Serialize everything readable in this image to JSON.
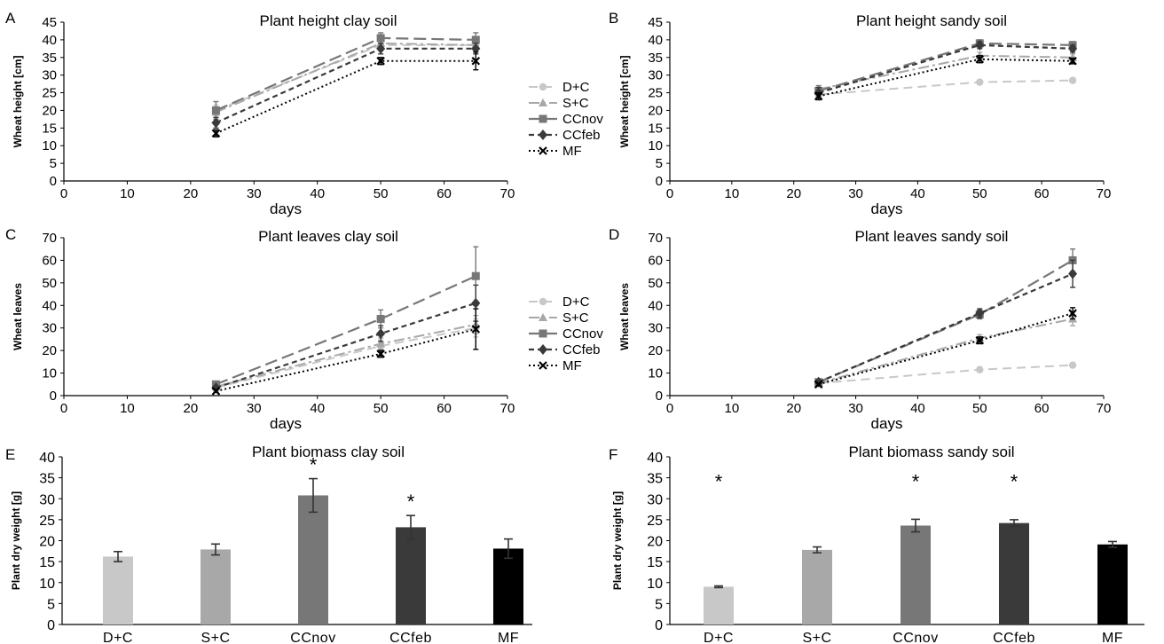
{
  "chart_data": [
    {
      "panel": "A",
      "type": "line",
      "title": "Plant height clay soil",
      "xlabel": "days",
      "ylabel": "Wheat height [cm]",
      "xlim": [
        0,
        70
      ],
      "xticks": [
        0,
        10,
        20,
        30,
        40,
        50,
        60,
        70
      ],
      "ylim": [
        0,
        45
      ],
      "yticks": [
        0,
        5,
        10,
        15,
        20,
        25,
        30,
        35,
        40,
        45
      ],
      "x": [
        24,
        50,
        65
      ],
      "series": [
        {
          "name": "D+C",
          "values": [
            20,
            38.5,
            38.5
          ],
          "err": [
            1.5,
            1.0,
            1.0
          ]
        },
        {
          "name": "S+C",
          "values": [
            19.5,
            39.0,
            38.5
          ],
          "err": [
            1.5,
            1.0,
            1.0
          ]
        },
        {
          "name": "CCnov",
          "values": [
            20,
            40.5,
            40
          ],
          "err": [
            2.5,
            1.5,
            2.0
          ]
        },
        {
          "name": "CCfeb",
          "values": [
            16.5,
            37.5,
            37.5
          ],
          "err": [
            1.5,
            1.5,
            1.5
          ]
        },
        {
          "name": "MF",
          "values": [
            13.5,
            34,
            34
          ],
          "err": [
            1.0,
            1.0,
            2.5
          ]
        }
      ]
    },
    {
      "panel": "B",
      "type": "line",
      "title": "Plant height sandy soil",
      "xlabel": "days",
      "ylabel": "Wheat height [cm]",
      "xlim": [
        0,
        70
      ],
      "xticks": [
        0,
        10,
        20,
        30,
        40,
        50,
        60,
        70
      ],
      "ylim": [
        0,
        45
      ],
      "yticks": [
        0,
        5,
        10,
        15,
        20,
        25,
        30,
        35,
        40,
        45
      ],
      "x": [
        24,
        50,
        65
      ],
      "series": [
        {
          "name": "D+C",
          "values": [
            24.5,
            28,
            28.5
          ],
          "err": [
            1.0,
            0.5,
            0.5
          ]
        },
        {
          "name": "S+C",
          "values": [
            26,
            35.5,
            35
          ],
          "err": [
            1.0,
            1.0,
            1.0
          ]
        },
        {
          "name": "CCnov",
          "values": [
            25.5,
            39,
            38.5
          ],
          "err": [
            1.5,
            1.0,
            1.0
          ]
        },
        {
          "name": "CCfeb",
          "values": [
            25,
            38.5,
            37.5
          ],
          "err": [
            1.5,
            1.0,
            1.0
          ]
        },
        {
          "name": "MF",
          "values": [
            24,
            34.5,
            34
          ],
          "err": [
            1.0,
            1.0,
            0.8
          ]
        }
      ]
    },
    {
      "panel": "C",
      "type": "line",
      "title": "Plant leaves clay soil",
      "xlabel": "days",
      "ylabel": "Wheat leaves",
      "xlim": [
        0,
        70
      ],
      "xticks": [
        0,
        10,
        20,
        30,
        40,
        50,
        60,
        70
      ],
      "ylim": [
        0,
        70
      ],
      "yticks": [
        0,
        10,
        20,
        30,
        40,
        50,
        60,
        70
      ],
      "x": [
        24,
        50,
        65
      ],
      "series": [
        {
          "name": "D+C",
          "values": [
            3.5,
            22,
            30
          ],
          "err": [
            0.5,
            2.5,
            4
          ]
        },
        {
          "name": "S+C",
          "values": [
            4,
            23,
            31.5
          ],
          "err": [
            0.5,
            2.5,
            4
          ]
        },
        {
          "name": "CCnov",
          "values": [
            5,
            34,
            53
          ],
          "err": [
            1.0,
            4,
            13
          ]
        },
        {
          "name": "CCfeb",
          "values": [
            3.5,
            27.5,
            41
          ],
          "err": [
            0.5,
            3.5,
            8
          ]
        },
        {
          "name": "MF",
          "values": [
            2,
            18.5,
            29.5
          ],
          "err": [
            0.5,
            1.5,
            9
          ]
        }
      ]
    },
    {
      "panel": "D",
      "type": "line",
      "title": "Plant leaves sandy soil",
      "xlabel": "days",
      "ylabel": "Wheat leaves",
      "xlim": [
        0,
        70
      ],
      "xticks": [
        0,
        10,
        20,
        30,
        40,
        50,
        60,
        70
      ],
      "ylim": [
        0,
        70
      ],
      "yticks": [
        0,
        10,
        20,
        30,
        40,
        50,
        60,
        70
      ],
      "x": [
        24,
        50,
        65
      ],
      "series": [
        {
          "name": "D+C",
          "values": [
            5.5,
            11.5,
            13.5
          ],
          "err": [
            0.5,
            1.0,
            1.0
          ]
        },
        {
          "name": "S+C",
          "values": [
            5.5,
            25.5,
            34
          ],
          "err": [
            0.5,
            1.5,
            3
          ]
        },
        {
          "name": "CCnov",
          "values": [
            6,
            36,
            60
          ],
          "err": [
            0.5,
            2,
            5
          ]
        },
        {
          "name": "CCfeb",
          "values": [
            6,
            36.5,
            54
          ],
          "err": [
            0.5,
            2,
            6
          ]
        },
        {
          "name": "MF",
          "values": [
            5,
            24.5,
            36.5
          ],
          "err": [
            0.5,
            1.5,
            2.5
          ]
        }
      ]
    },
    {
      "panel": "E",
      "type": "bar",
      "title": "Plant biomass clay soil",
      "ylabel": "Plant dry weight [g]",
      "ylim": [
        0,
        40
      ],
      "yticks": [
        0,
        5,
        10,
        15,
        20,
        25,
        30,
        35,
        40
      ],
      "categories": [
        "D+C",
        "S+C",
        "CCnov",
        "CCfeb",
        "MF"
      ],
      "values": [
        16.2,
        17.9,
        30.8,
        23.2,
        18.1
      ],
      "err": [
        1.2,
        1.3,
        4.0,
        2.8,
        2.3
      ],
      "significant": [
        "",
        "",
        "*",
        "*",
        ""
      ]
    },
    {
      "panel": "F",
      "type": "bar",
      "title": "Plant biomass sandy soil",
      "ylabel": "Plant dry weight [g]",
      "ylim": [
        0,
        40
      ],
      "yticks": [
        0,
        5,
        10,
        15,
        20,
        25,
        30,
        35,
        40
      ],
      "categories": [
        "D+C",
        "S+C",
        "CCnov",
        "CCfeb",
        "MF"
      ],
      "values": [
        9.0,
        17.8,
        23.6,
        24.2,
        19.1
      ],
      "err": [
        0.2,
        0.7,
        1.5,
        0.8,
        0.7
      ],
      "significant": [
        "*",
        "",
        "*",
        "*",
        ""
      ]
    }
  ],
  "legend": [
    "D+C",
    "S+C",
    "CCnov",
    "CCfeb",
    "MF"
  ],
  "colors": {
    "D+C": "#c8c8c8",
    "S+C": "#a8a8a8",
    "CCnov": "#777777",
    "CCfeb": "#3a3a3a",
    "MF": "#000000"
  }
}
